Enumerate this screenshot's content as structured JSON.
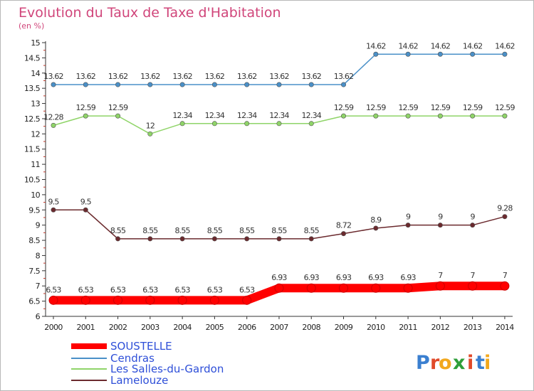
{
  "chart_data": {
    "type": "line",
    "title": "Evolution du Taux de Taxe d'Habitation",
    "subtitle": "(en %)",
    "x": [
      "2000",
      "2001",
      "2002",
      "2003",
      "2004",
      "2005",
      "2006",
      "2007",
      "2008",
      "2009",
      "2010",
      "2011",
      "2012",
      "2013",
      "2014"
    ],
    "yticks": [
      "6",
      "6.5",
      "7",
      "7.5",
      "8",
      "8.5",
      "9",
      "9.5",
      "10",
      "10.5",
      "11",
      "11.5",
      "12",
      "12.5",
      "13",
      "13.5",
      "14",
      "14.5",
      "15"
    ],
    "ylim": [
      6,
      15
    ],
    "grid": false,
    "legend_position": "bottom-left",
    "series": [
      {
        "name": "SOUSTELLE",
        "color": "#ff0000",
        "values": [
          6.53,
          6.53,
          6.53,
          6.53,
          6.53,
          6.53,
          6.53,
          6.93,
          6.93,
          6.93,
          6.93,
          6.93,
          7,
          7,
          7
        ],
        "labels": [
          "6.53",
          "6.53",
          "6.53",
          "6.53",
          "6.53",
          "6.53",
          "6.53",
          "6.93",
          "6.93",
          "6.93",
          "6.93",
          "6.93",
          "7",
          "7",
          "7"
        ]
      },
      {
        "name": "Cendras",
        "color": "#4a90c8",
        "values": [
          13.62,
          13.62,
          13.62,
          13.62,
          13.62,
          13.62,
          13.62,
          13.62,
          13.62,
          13.62,
          14.62,
          14.62,
          14.62,
          14.62,
          14.62
        ],
        "labels": [
          "13.62",
          "13.62",
          "13.62",
          "13.62",
          "13.62",
          "13.62",
          "13.62",
          "13.62",
          "13.62",
          "13.62",
          "14.62",
          "14.62",
          "14.62",
          "14.62",
          "14.62"
        ]
      },
      {
        "name": "Les Salles-du-Gardon",
        "color": "#8fd468",
        "values": [
          12.28,
          12.59,
          12.59,
          12,
          12.34,
          12.34,
          12.34,
          12.34,
          12.34,
          12.59,
          12.59,
          12.59,
          12.59,
          12.59,
          12.59
        ],
        "labels": [
          "12.28",
          "12.59",
          "12.59",
          "12",
          "12.34",
          "12.34",
          "12.34",
          "12.34",
          "12.34",
          "12.59",
          "12.59",
          "12.59",
          "12.59",
          "12.59",
          "12.59"
        ]
      },
      {
        "name": "Lamelouze",
        "color": "#6b2a2e",
        "values": [
          9.5,
          9.5,
          8.55,
          8.55,
          8.55,
          8.55,
          8.55,
          8.55,
          8.55,
          8.72,
          8.9,
          9,
          9,
          9,
          9.28
        ],
        "labels": [
          "9.5",
          "9.5",
          "8.55",
          "8.55",
          "8.55",
          "8.55",
          "8.55",
          "8.55",
          "8.55",
          "8.72",
          "8.9",
          "9",
          "9",
          "9",
          "9.28"
        ]
      }
    ]
  },
  "brand": {
    "letters": [
      "P",
      "r",
      "o",
      "x",
      "i",
      "t",
      "i"
    ],
    "colors": [
      "#3a7fd0",
      "#e04a2a",
      "#f2a81d",
      "#2e9f3a",
      "#e04a2a",
      "#3a7fd0",
      "#f2a81d"
    ]
  }
}
